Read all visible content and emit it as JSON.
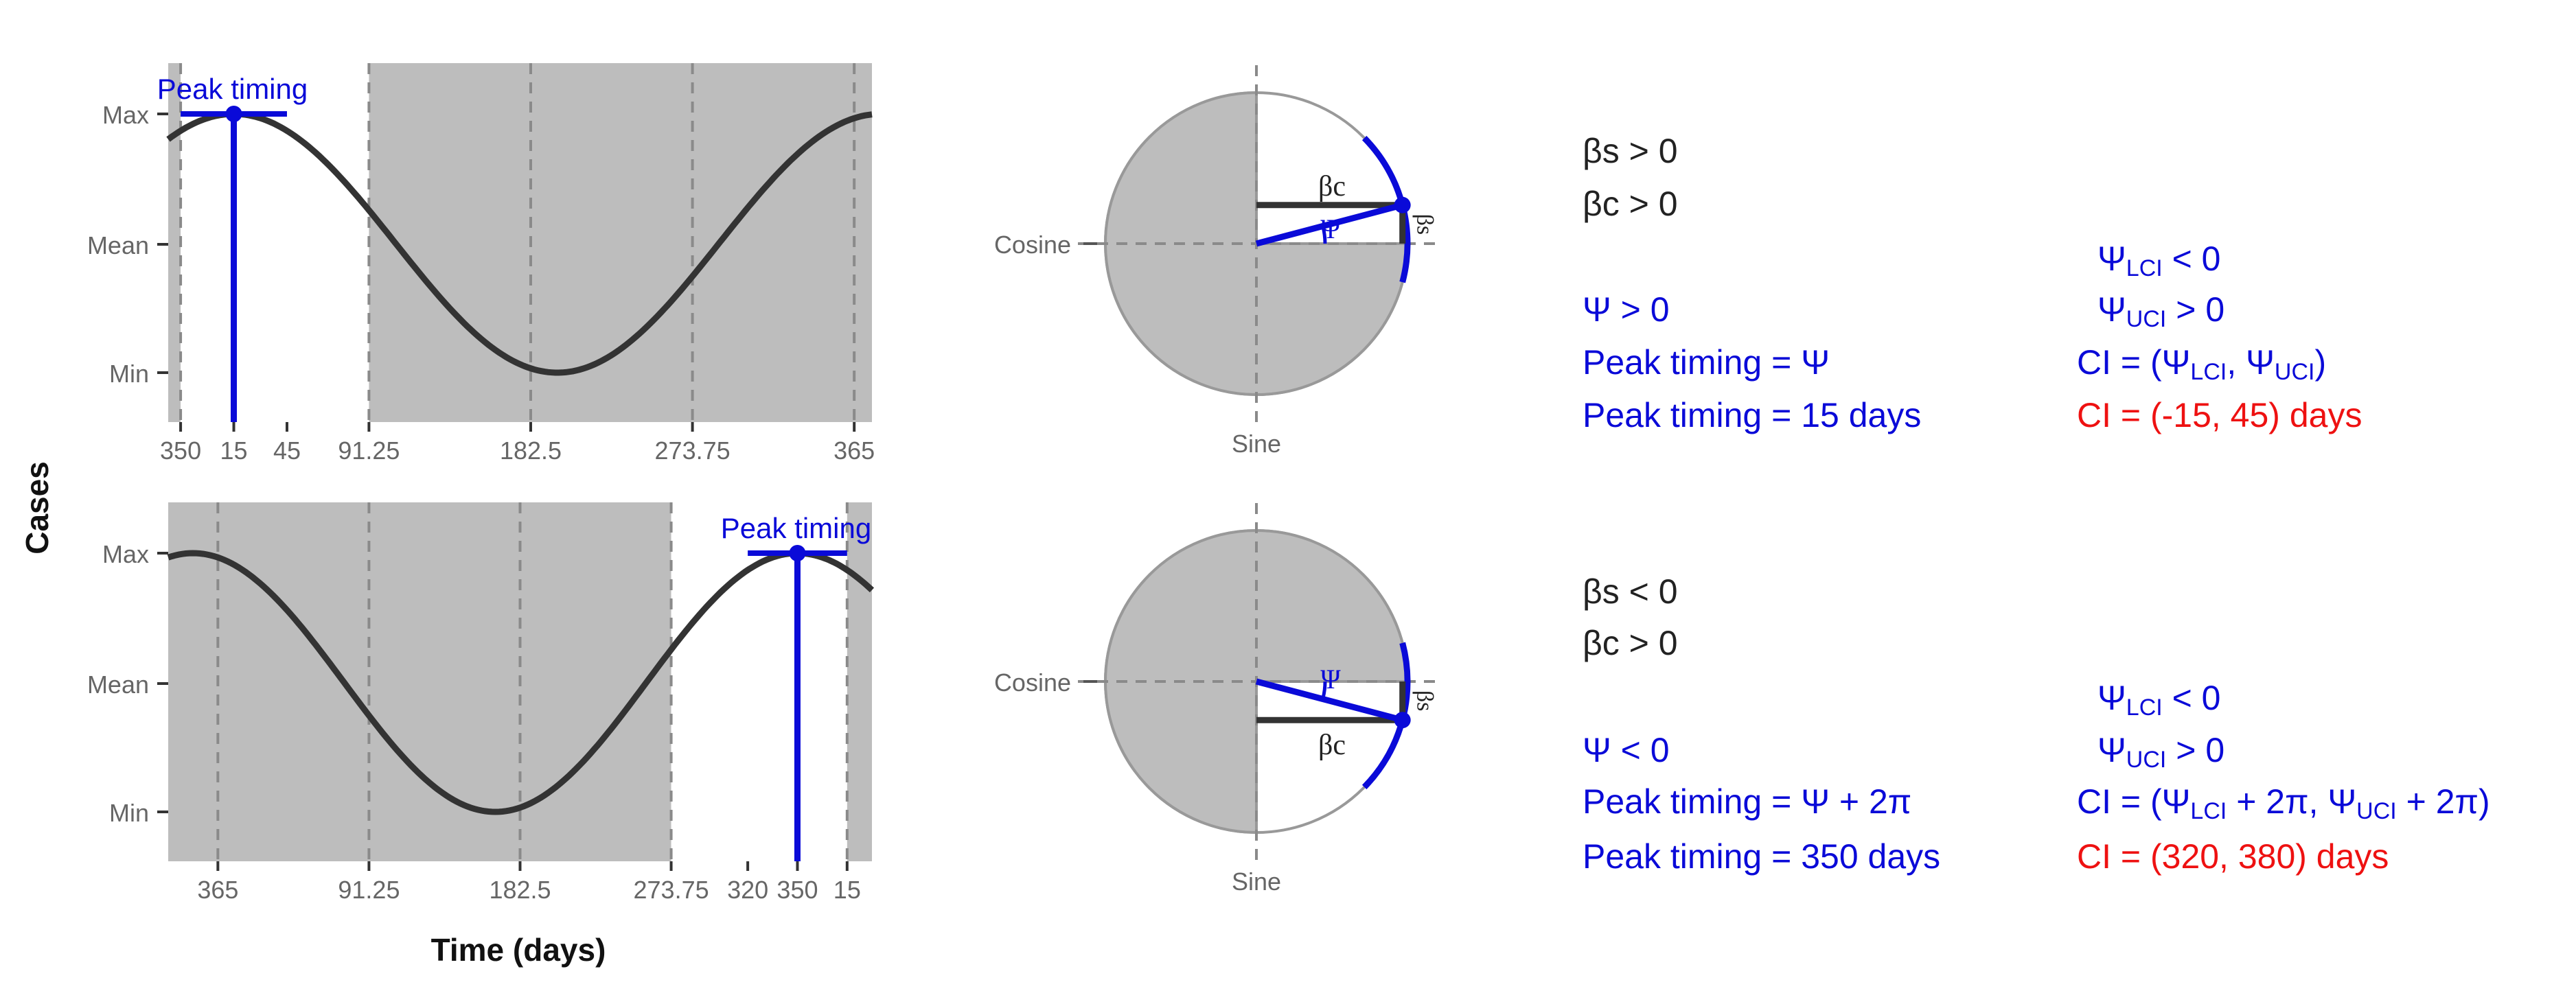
{
  "colors": {
    "panel_fill": "#bdbdbd",
    "window_fill": "#ffffff",
    "curve": "#333333",
    "dash": "#8a8a8a",
    "accent_blue": "#0a0ad8",
    "text_dark": "#222222",
    "text_gray": "#666666",
    "ci_red": "#ee1111",
    "circle_edge": "#999999"
  },
  "axes": {
    "y_title": "Cases",
    "x_title": "Time (days)",
    "y_ticks": [
      "Max",
      "Mean",
      "Min"
    ]
  },
  "panels": [
    {
      "peak_label": "Peak timing",
      "curve_peak_day": 15,
      "ci_days": [
        -15,
        45
      ],
      "x_range": [
        -22,
        375
      ],
      "dashed_days": [
        -15,
        91.25,
        182.5,
        273.75,
        365
      ],
      "white_window": [
        -15,
        91.25
      ],
      "x_tick_labels": [
        {
          "day": -15,
          "label": "350"
        },
        {
          "day": 15,
          "label": "15"
        },
        {
          "day": 45,
          "label": "45"
        },
        {
          "day": 91.25,
          "label": "91.25"
        },
        {
          "day": 182.5,
          "label": "182.5"
        },
        {
          "day": 273.75,
          "label": "273.75"
        },
        {
          "day": 365,
          "label": "365"
        }
      ]
    },
    {
      "peak_label": "Peak timing",
      "curve_peak_day": -15,
      "ci_days": [
        320,
        380
      ],
      "x_range": [
        -30,
        395
      ],
      "dashed_days": [
        0,
        91.25,
        182.5,
        273.75,
        380
      ],
      "white_window": [
        273.75,
        380
      ],
      "x_tick_labels": [
        {
          "day": 0,
          "label": "365"
        },
        {
          "day": 91.25,
          "label": "91.25"
        },
        {
          "day": 182.5,
          "label": "182.5"
        },
        {
          "day": 273.75,
          "label": "273.75"
        },
        {
          "day": 320,
          "label": "320"
        },
        {
          "day": 350,
          "label": "350"
        },
        {
          "day": 380,
          "label": "15"
        }
      ]
    }
  ],
  "circles": [
    {
      "axis_x_label": "Cosine",
      "axis_y_label": "Sine",
      "beta_c_label": "βc",
      "beta_s_label": "βs",
      "psi_label": "Ψ",
      "psi_deg": 14.8,
      "ci_deg": [
        -14.8,
        44.4
      ]
    },
    {
      "axis_x_label": "Cosine",
      "axis_y_label": "Sine",
      "beta_c_label": "βc",
      "beta_s_label": "βs",
      "psi_label": "Ψ",
      "psi_deg": -14.8,
      "ci_deg": [
        -44.4,
        14.8
      ]
    }
  ],
  "equations": [
    {
      "beta_s": "βs > 0",
      "beta_c": "βc > 0",
      "psi": "Ψ > 0",
      "peak_formula": "Peak timing = Ψ",
      "peak_days": "Peak timing = 15 days",
      "lci_sign": {
        "sym": "Ψ",
        "sub": "LCI",
        "rest": " < 0"
      },
      "uci_sign": {
        "sym": "Ψ",
        "sub": "UCI",
        "rest": " > 0"
      },
      "ci_formula": {
        "pre": "CI = (Ψ",
        "sub1": "LCI",
        "mid": ", Ψ",
        "sub2": "UCI",
        "post": ")"
      },
      "ci_days": "CI = (-15, 45) days"
    },
    {
      "beta_s": "βs < 0",
      "beta_c": "βc > 0",
      "psi": "Ψ < 0",
      "peak_formula": "Peak timing = Ψ + 2π",
      "peak_days": "Peak timing = 350 days",
      "lci_sign": {
        "sym": "Ψ",
        "sub": "LCI",
        "rest": " < 0"
      },
      "uci_sign": {
        "sym": "Ψ",
        "sub": "UCI",
        "rest": " > 0"
      },
      "ci_formula": {
        "pre": "CI = (Ψ",
        "sub1": "LCI",
        "mid": " + 2π, Ψ",
        "sub2": "UCI",
        "post": " + 2π)"
      },
      "ci_days": "CI = (320, 380) days"
    }
  ]
}
